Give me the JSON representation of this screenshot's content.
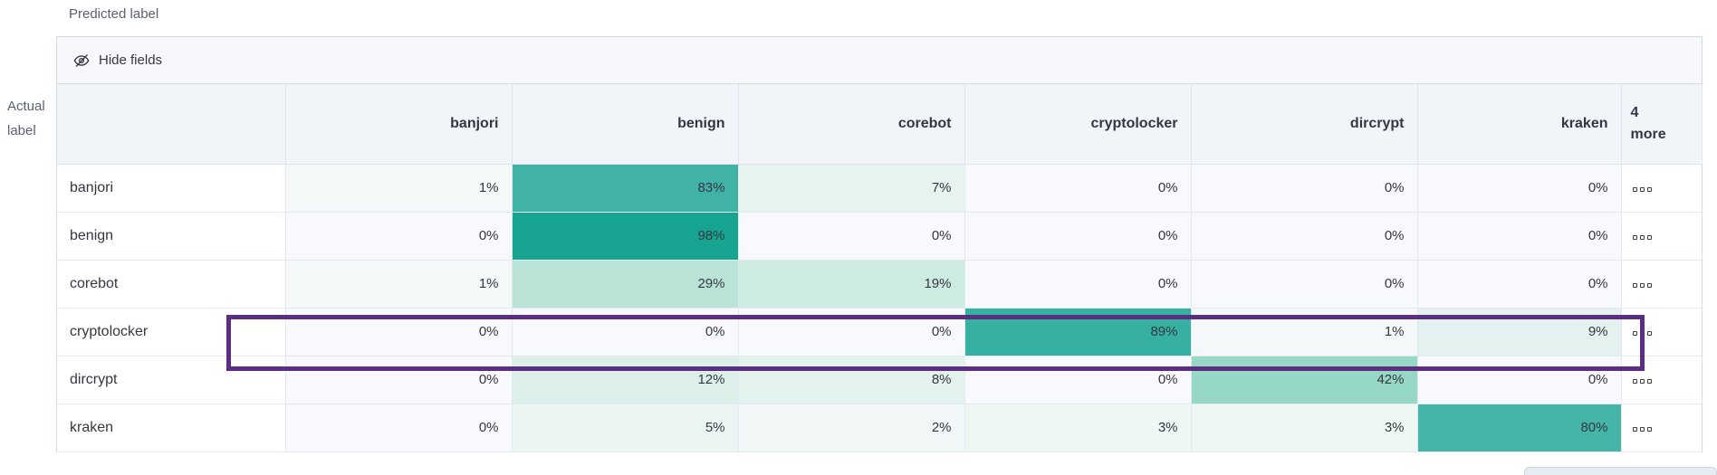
{
  "axes": {
    "predicted": "Predicted label",
    "actual_line1": "Actual",
    "actual_line2": "label"
  },
  "toolbar": {
    "hide_fields": "Hide fields"
  },
  "matrix": {
    "columns": [
      "banjori",
      "benign",
      "corebot",
      "cryptolocker",
      "dircrypt",
      "kraken"
    ],
    "more_header": {
      "line1": "4",
      "line2": "more"
    },
    "rows": [
      {
        "label": "banjori",
        "highlighted": false,
        "cells": [
          {
            "value": "1%",
            "bg": "#f4f8f9"
          },
          {
            "value": "83%",
            "bg": "#41b3a6"
          },
          {
            "value": "7%",
            "bg": "#e6f3ef"
          },
          {
            "value": "0%",
            "bg": "#f7f9fc"
          },
          {
            "value": "0%",
            "bg": "#f7f9fc"
          },
          {
            "value": "0%",
            "bg": "#f7f9fc"
          }
        ]
      },
      {
        "label": "benign",
        "highlighted": false,
        "cells": [
          {
            "value": "0%",
            "bg": "#f7f9fc"
          },
          {
            "value": "98%",
            "bg": "#17a591"
          },
          {
            "value": "0%",
            "bg": "#f7f9fc"
          },
          {
            "value": "0%",
            "bg": "#f7f9fc"
          },
          {
            "value": "0%",
            "bg": "#f7f9fc"
          },
          {
            "value": "0%",
            "bg": "#f7f9fc"
          }
        ]
      },
      {
        "label": "corebot",
        "highlighted": false,
        "cells": [
          {
            "value": "1%",
            "bg": "#f4f8f9"
          },
          {
            "value": "29%",
            "bg": "#b9e3d7"
          },
          {
            "value": "19%",
            "bg": "#cdebe1"
          },
          {
            "value": "0%",
            "bg": "#f7f9fc"
          },
          {
            "value": "0%",
            "bg": "#f7f9fc"
          },
          {
            "value": "0%",
            "bg": "#f7f9fc"
          }
        ]
      },
      {
        "label": "cryptolocker",
        "highlighted": false,
        "cells": [
          {
            "value": "0%",
            "bg": "#f7f9fc"
          },
          {
            "value": "0%",
            "bg": "#f7f9fc"
          },
          {
            "value": "0%",
            "bg": "#f7f9fc"
          },
          {
            "value": "89%",
            "bg": "#36b0a1"
          },
          {
            "value": "1%",
            "bg": "#f4f8f9"
          },
          {
            "value": "9%",
            "bg": "#e3f2ee"
          }
        ]
      },
      {
        "label": "dircrypt",
        "highlighted": true,
        "cells": [
          {
            "value": "0%",
            "bg": "#f7f9fc"
          },
          {
            "value": "12%",
            "bg": "#dcf0e9"
          },
          {
            "value": "8%",
            "bg": "#e3f2ed"
          },
          {
            "value": "0%",
            "bg": "#f7f9fc"
          },
          {
            "value": "42%",
            "bg": "#96d7c6"
          },
          {
            "value": "0%",
            "bg": "#f7f9fc"
          }
        ]
      },
      {
        "label": "kraken",
        "highlighted": false,
        "cells": [
          {
            "value": "0%",
            "bg": "#f7f9fc"
          },
          {
            "value": "5%",
            "bg": "#ebf5f1"
          },
          {
            "value": "2%",
            "bg": "#f1f7f7"
          },
          {
            "value": "3%",
            "bg": "#eff7f4"
          },
          {
            "value": "3%",
            "bg": "#eff7f4"
          },
          {
            "value": "80%",
            "bg": "#44b5a6"
          }
        ]
      }
    ]
  },
  "highlight": {
    "row": "dircrypt",
    "color": "#5C2E82"
  },
  "colors": {
    "card_border": "#d3dae6",
    "toolbar_bg": "#f6f8fc",
    "header_bg": "#f1f4f9",
    "cell_border": "#e3e9f2",
    "zero_bg": "#f7f9fc",
    "text": "#343741",
    "muted_text": "#5a6170"
  },
  "icons": {
    "toolbar_icon": "eye-closed-icon",
    "row_actions_icon": "boxes-horizontal-icon"
  }
}
